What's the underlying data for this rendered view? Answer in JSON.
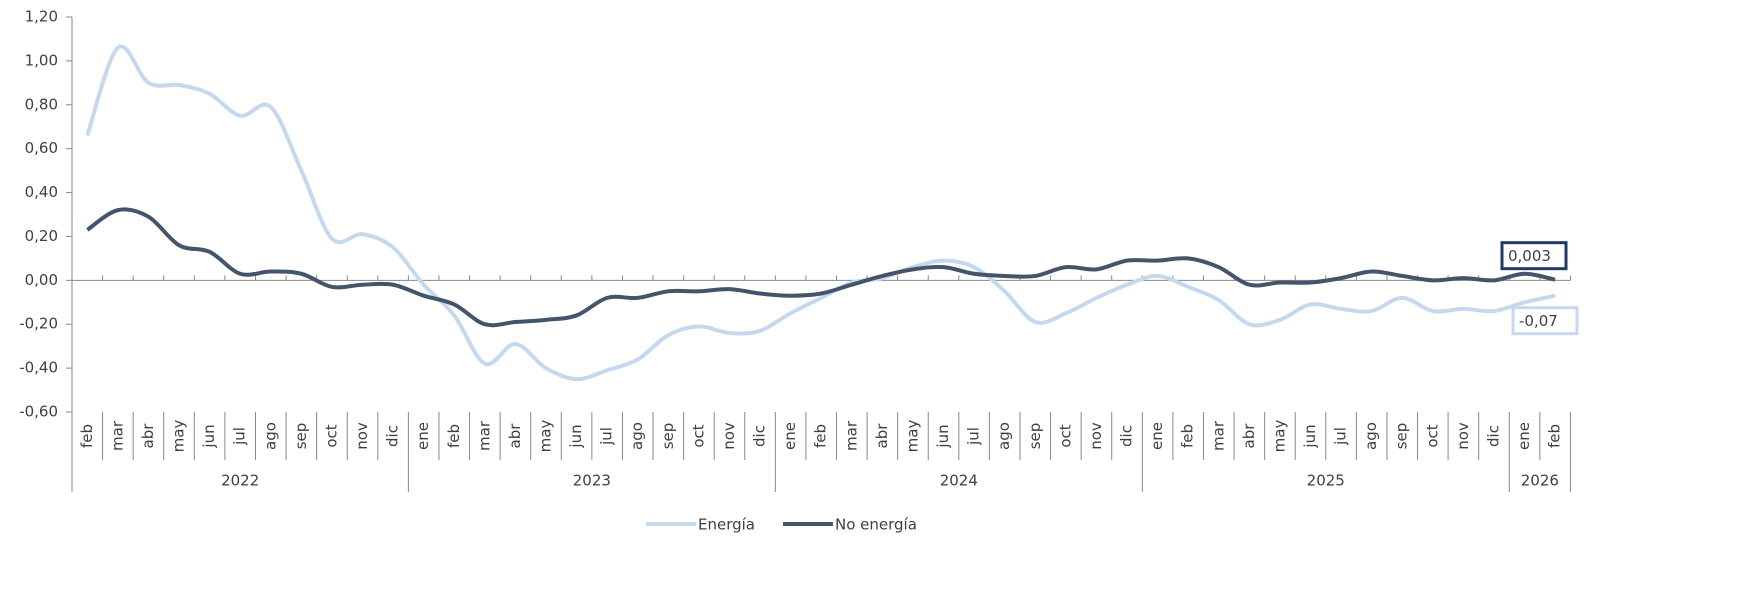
{
  "chart_data": {
    "type": "line",
    "categories": [
      "feb",
      "mar",
      "abr",
      "may",
      "jun",
      "jul",
      "ago",
      "sep",
      "oct",
      "nov",
      "dic",
      "ene",
      "feb",
      "mar",
      "abr",
      "may",
      "jun",
      "jul",
      "ago",
      "sep",
      "oct",
      "nov",
      "dic",
      "ene",
      "feb",
      "mar",
      "abr",
      "may",
      "jun",
      "jul",
      "ago",
      "sep",
      "oct",
      "nov",
      "dic",
      "ene",
      "feb",
      "mar",
      "abr",
      "may",
      "jun",
      "jul",
      "ago",
      "sep",
      "oct",
      "nov",
      "dic",
      "ene",
      "feb"
    ],
    "year_groups": [
      {
        "label": "2022",
        "span": 11
      },
      {
        "label": "2023",
        "span": 12
      },
      {
        "label": "2024",
        "span": 12
      },
      {
        "label": "2025",
        "span": 12
      },
      {
        "label": "2026",
        "span": 2
      }
    ],
    "series": [
      {
        "name": "Energía",
        "color": "#c5d9ee",
        "values": [
          0.66,
          1.06,
          0.9,
          0.89,
          0.85,
          0.75,
          0.79,
          0.5,
          0.19,
          0.21,
          0.15,
          -0.02,
          -0.16,
          -0.38,
          -0.29,
          -0.4,
          -0.45,
          -0.41,
          -0.36,
          -0.25,
          -0.21,
          -0.24,
          -0.23,
          -0.15,
          -0.08,
          -0.01,
          0.01,
          0.06,
          0.09,
          0.06,
          -0.05,
          -0.19,
          -0.15,
          -0.08,
          -0.02,
          0.02,
          -0.03,
          -0.09,
          -0.2,
          -0.18,
          -0.11,
          -0.13,
          -0.14,
          -0.08,
          -0.14,
          -0.13,
          -0.14,
          -0.1,
          -0.07
        ],
        "value_labels": [
          null,
          null,
          null,
          null,
          null,
          null,
          null,
          null,
          null,
          null,
          null,
          null,
          null,
          null,
          null,
          null,
          null,
          null,
          null,
          null,
          null,
          null,
          null,
          null,
          null,
          null,
          null,
          null,
          null,
          null,
          null,
          null,
          null,
          null,
          null,
          null,
          null,
          null,
          null,
          null,
          null,
          null,
          null,
          null,
          null,
          null,
          null,
          null,
          "-0,07"
        ]
      },
      {
        "name": "No energía",
        "color": "#44546a",
        "values": [
          0.23,
          0.32,
          0.29,
          0.16,
          0.13,
          0.03,
          0.04,
          0.03,
          -0.03,
          -0.02,
          -0.02,
          -0.07,
          -0.11,
          -0.2,
          -0.19,
          -0.18,
          -0.16,
          -0.08,
          -0.08,
          -0.05,
          -0.05,
          -0.04,
          -0.06,
          -0.07,
          -0.06,
          -0.02,
          0.02,
          0.05,
          0.06,
          0.03,
          0.02,
          0.02,
          0.06,
          0.05,
          0.09,
          0.09,
          0.1,
          0.06,
          -0.02,
          -0.01,
          -0.01,
          0.01,
          0.04,
          0.02,
          0.0,
          0.01,
          0.0,
          0.03,
          0.003
        ],
        "value_labels": [
          null,
          null,
          null,
          null,
          null,
          null,
          null,
          null,
          null,
          null,
          null,
          null,
          null,
          null,
          null,
          null,
          null,
          null,
          null,
          null,
          null,
          null,
          null,
          null,
          null,
          null,
          null,
          null,
          null,
          null,
          null,
          null,
          null,
          null,
          null,
          null,
          null,
          null,
          null,
          null,
          null,
          null,
          null,
          null,
          null,
          null,
          null,
          null,
          "0,003"
        ]
      }
    ],
    "ylim": [
      -0.6,
      1.2
    ],
    "yticks": [
      {
        "value": -0.6,
        "label": "-0,60"
      },
      {
        "value": -0.4,
        "label": "-0,40"
      },
      {
        "value": -0.2,
        "label": "-0,20"
      },
      {
        "value": 0,
        "label": "0,00"
      },
      {
        "value": 0.2,
        "label": "0,20"
      },
      {
        "value": 0.4,
        "label": "0,40"
      },
      {
        "value": 0.6,
        "label": "0,60"
      },
      {
        "value": 0.8,
        "label": "0,80"
      },
      {
        "value": 1.0,
        "label": "1,00"
      },
      {
        "value": 1.2,
        "label": "1,20"
      }
    ],
    "legend": "bottom"
  }
}
